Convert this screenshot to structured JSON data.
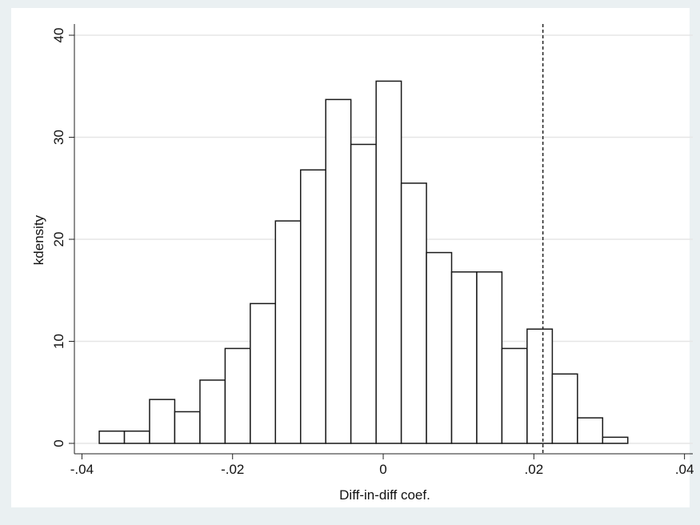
{
  "chart_data": {
    "type": "histogram",
    "xlabel": "Diff-in-diff coef.",
    "ylabel": "kdensity",
    "bins": [
      -0.0377,
      -0.03436,
      -0.03102,
      -0.02768,
      -0.02433,
      -0.02099,
      -0.01765,
      -0.01431,
      -0.01097,
      -0.00763,
      -0.00429,
      -0.00094,
      0.0024,
      0.00574,
      0.00908,
      0.01242,
      0.01576,
      0.0191,
      0.02245,
      0.02579,
      0.02913,
      0.03247
    ],
    "values": [
      1.2,
      1.2,
      4.3,
      3.1,
      6.2,
      9.3,
      13.7,
      21.8,
      26.8,
      33.7,
      29.3,
      35.5,
      25.5,
      18.7,
      16.8,
      16.8,
      9.3,
      11.2,
      6.8,
      2.5,
      0.6
    ],
    "color": "#ffffff",
    "edgecolor": "#1a1a1a",
    "xline": 0.0212,
    "xlim": [
      -0.041,
      0.0411
    ],
    "xticks": [
      {
        "value": -0.04,
        "label": "-.04"
      },
      {
        "value": -0.02,
        "label": "-.02"
      },
      0,
      {
        "value": 0.02,
        "label": ".02"
      },
      {
        "value": 0.04,
        "label": ".04"
      }
    ],
    "ylim": [
      -1.02,
      41.1
    ],
    "yticks": [
      0,
      10,
      20,
      30,
      40
    ],
    "grid": true
  }
}
